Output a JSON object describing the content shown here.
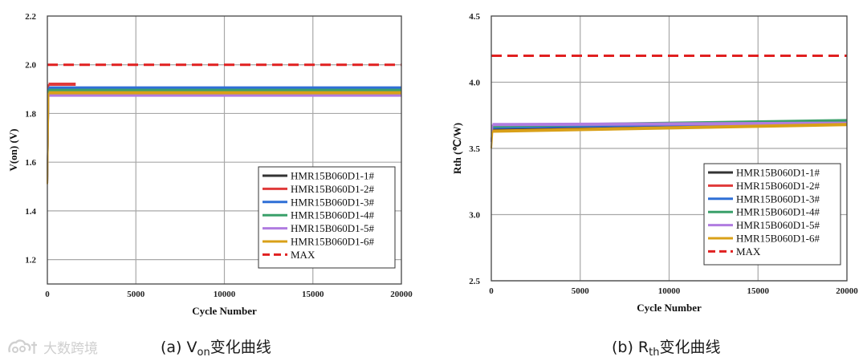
{
  "chart_data": [
    {
      "id": "a",
      "type": "line",
      "xlabel": "Cycle Number",
      "ylabel": "V(on) (V)",
      "xlim": [
        0,
        20000
      ],
      "ylim": [
        1.1,
        2.2
      ],
      "xticks": [
        0,
        5000,
        10000,
        15000,
        20000
      ],
      "xtick_labels": [
        "0",
        "5000",
        "10000",
        "15000",
        "20000"
      ],
      "yticks": [
        1.2,
        1.4,
        1.6,
        1.8,
        2.0,
        2.2
      ],
      "ytick_labels": [
        "1.2",
        "1.4",
        "1.6",
        "1.8",
        "2.0",
        "2.2"
      ],
      "grid": true,
      "legend_position": "bottom-right",
      "series": [
        {
          "name": "HMR15B060D1-1#",
          "color": "#333333",
          "dashed": false,
          "x": [
            0,
            20000
          ],
          "y": [
            1.9,
            1.9
          ],
          "start_x": 0,
          "start_y": 1.51
        },
        {
          "name": "HMR15B060D1-2#",
          "color": "#e03a3a",
          "dashed": false,
          "x": [
            0,
            1600
          ],
          "y": [
            1.92,
            1.92
          ],
          "start_x": 0,
          "start_y": 1.51
        },
        {
          "name": "HMR15B060D1-3#",
          "color": "#2f6fd6",
          "dashed": false,
          "x": [
            0,
            20000
          ],
          "y": [
            1.905,
            1.905
          ],
          "start_x": 0,
          "start_y": 1.51
        },
        {
          "name": "HMR15B060D1-4#",
          "color": "#3aa06a",
          "dashed": false,
          "x": [
            0,
            20000
          ],
          "y": [
            1.895,
            1.895
          ],
          "start_x": 0,
          "start_y": 1.51
        },
        {
          "name": "HMR15B060D1-5#",
          "color": "#b07ce0",
          "dashed": false,
          "x": [
            0,
            20000
          ],
          "y": [
            1.875,
            1.875
          ],
          "start_x": 0,
          "start_y": 1.51
        },
        {
          "name": "HMR15B060D1-6#",
          "color": "#d9a018",
          "dashed": false,
          "x": [
            0,
            20000
          ],
          "y": [
            1.885,
            1.885
          ],
          "start_x": 0,
          "start_y": 1.51
        },
        {
          "name": "MAX",
          "color": "#e02020",
          "dashed": true,
          "x": [
            0,
            20000
          ],
          "y": [
            2.0,
            2.0
          ]
        }
      ]
    },
    {
      "id": "b",
      "type": "line",
      "xlabel": "Cycle Number",
      "ylabel": "Rth (℃/W)",
      "xlim": [
        0,
        20000
      ],
      "ylim": [
        2.5,
        4.5
      ],
      "xticks": [
        0,
        5000,
        10000,
        15000,
        20000
      ],
      "xtick_labels": [
        "0",
        "5000",
        "10000",
        "15000",
        "20000"
      ],
      "yticks": [
        2.5,
        3.0,
        3.5,
        4.0,
        4.5
      ],
      "ytick_labels": [
        "2.5",
        "3.0",
        "3.5",
        "4.0",
        "4.5"
      ],
      "grid": true,
      "legend_position": "bottom-right",
      "series": [
        {
          "name": "HMR15B060D1-1#",
          "color": "#333333",
          "dashed": false,
          "x": [
            0,
            20000
          ],
          "y": [
            3.65,
            3.69
          ],
          "start_x": 0,
          "start_y": 3.55
        },
        {
          "name": "HMR15B060D1-2#",
          "color": "#e03a3a",
          "dashed": false,
          "x": [
            0,
            20000
          ],
          "y": [
            3.66,
            3.7
          ],
          "start_x": 0,
          "start_y": 3.55
        },
        {
          "name": "HMR15B060D1-3#",
          "color": "#2f6fd6",
          "dashed": false,
          "x": [
            0,
            20000
          ],
          "y": [
            3.66,
            3.7
          ],
          "start_x": 0,
          "start_y": 3.55
        },
        {
          "name": "HMR15B060D1-4#",
          "color": "#3aa06a",
          "dashed": false,
          "x": [
            0,
            20000
          ],
          "y": [
            3.67,
            3.71
          ],
          "start_x": 0,
          "start_y": 3.55
        },
        {
          "name": "HMR15B060D1-5#",
          "color": "#b07ce0",
          "dashed": false,
          "x": [
            0,
            20000
          ],
          "y": [
            3.68,
            3.69
          ],
          "start_x": 0,
          "start_y": 3.55
        },
        {
          "name": "HMR15B060D1-6#",
          "color": "#d9a018",
          "dashed": false,
          "x": [
            0,
            20000
          ],
          "y": [
            3.63,
            3.68
          ],
          "start_x": 0,
          "start_y": 3.5
        },
        {
          "name": "MAX",
          "color": "#e02020",
          "dashed": true,
          "x": [
            0,
            20000
          ],
          "y": [
            4.2,
            4.2
          ]
        }
      ]
    }
  ],
  "captions": {
    "a_prefix": "(a) V",
    "a_sub": "on",
    "a_suffix": "变化曲线",
    "b_prefix": "(b) R",
    "b_sub": "th",
    "b_suffix": "变化曲线"
  },
  "watermark": {
    "text": "大数跨境"
  }
}
